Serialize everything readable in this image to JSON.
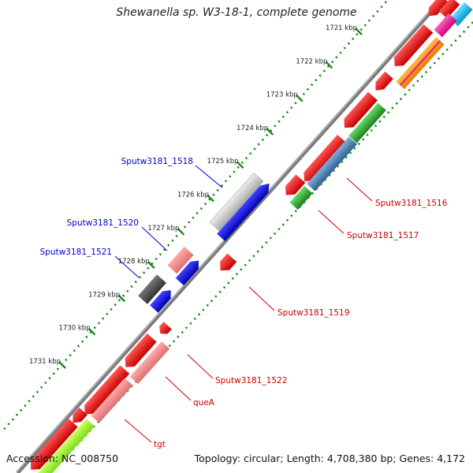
{
  "title": "Shewanella sp. W3-18-1, complete genome",
  "footer": {
    "accession": "Accession: NC_008750",
    "summary": "Topology: circular; Length: 4,708,380 bp; Genes: 4,172"
  },
  "ticks": [
    {
      "label": "1721 kbp",
      "kbp": 1721
    },
    {
      "label": "1722 kbp",
      "kbp": 1722
    },
    {
      "label": "1723 kbp",
      "kbp": 1723
    },
    {
      "label": "1724 kbp",
      "kbp": 1724
    },
    {
      "label": "1725 kbp",
      "kbp": 1725
    },
    {
      "label": "1726 kbp",
      "kbp": 1726
    },
    {
      "label": "1727 kbp",
      "kbp": 1727
    },
    {
      "label": "1728 kbp",
      "kbp": 1728
    },
    {
      "label": "1729 kbp",
      "kbp": 1729
    },
    {
      "label": "1730 kbp",
      "kbp": 1730
    },
    {
      "label": "1731 kbp",
      "kbp": 1731
    }
  ],
  "gene_labels": [
    {
      "name": "Sputw3181_1518",
      "color": "#0000cc"
    },
    {
      "name": "Sputw3181_1520",
      "color": "#0000cc"
    },
    {
      "name": "Sputw3181_1521",
      "color": "#0000cc"
    },
    {
      "name": "Sputw3181_1516",
      "color": "#cc0000"
    },
    {
      "name": "Sputw3181_1517",
      "color": "#cc0000"
    },
    {
      "name": "Sputw3181_1519",
      "color": "#cc0000"
    },
    {
      "name": "Sputw3181_1522",
      "color": "#cc0000"
    },
    {
      "name": "queA",
      "color": "#cc0000"
    },
    {
      "name": "tgt",
      "color": "#cc0000"
    }
  ],
  "colors": {
    "backbone": "#777777",
    "tick_dots": "#1a8a1a",
    "gene_red": "#ee0000",
    "gene_blue": "#0000ee",
    "cds_pink": "#ee8888",
    "cds_grey": "#bbbbbb",
    "cds_dark": "#555555",
    "cog_green": "#33aa33",
    "cog_steel": "#4682b4",
    "cog_lime": "#99ff33",
    "cog_cyan": "#22bbee",
    "cog_magenta": "#ee2299",
    "cog_orange": "#ff8800"
  }
}
